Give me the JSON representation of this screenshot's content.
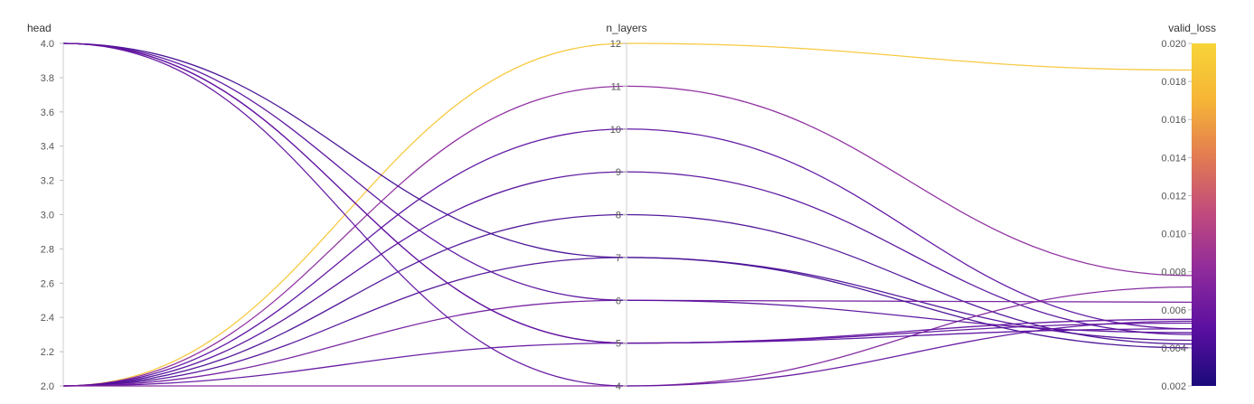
{
  "chart_data": {
    "type": "parallel_coordinates",
    "axes": [
      {
        "key": "head",
        "label": "head",
        "range": [
          2.0,
          4.0
        ],
        "ticks": [
          "2.0",
          "2.2",
          "2.4",
          "2.6",
          "2.8",
          "3.0",
          "3.2",
          "3.4",
          "3.6",
          "3.8",
          "4.0"
        ]
      },
      {
        "key": "n_layers",
        "label": "n_layers",
        "range": [
          4,
          12
        ],
        "ticks": [
          "4",
          "5",
          "6",
          "7",
          "8",
          "9",
          "10",
          "11",
          "12"
        ]
      },
      {
        "key": "valid_loss",
        "label": "valid_loss",
        "range": [
          0.002,
          0.02
        ],
        "ticks": [
          "0.002",
          "0.004",
          "0.006",
          "0.008",
          "0.010",
          "0.012",
          "0.014",
          "0.016",
          "0.018",
          "0.020"
        ]
      }
    ],
    "color_scale": {
      "metric": "valid_loss",
      "range": [
        0.002,
        0.02
      ],
      "stops": [
        "#1a0a7a",
        "#5b0fa0",
        "#8e2a9c",
        "#c0497e",
        "#e27a52",
        "#f6b536",
        "#f7d438"
      ]
    },
    "runs": [
      {
        "head": 2,
        "n_layers": 12,
        "valid_loss": 0.0186
      },
      {
        "head": 2,
        "n_layers": 11,
        "valid_loss": 0.0078
      },
      {
        "head": 2,
        "n_layers": 10,
        "valid_loss": 0.005
      },
      {
        "head": 2,
        "n_layers": 9,
        "valid_loss": 0.0047
      },
      {
        "head": 2,
        "n_layers": 8,
        "valid_loss": 0.0042
      },
      {
        "head": 2,
        "n_layers": 7,
        "valid_loss": 0.0044
      },
      {
        "head": 2,
        "n_layers": 6,
        "valid_loss": 0.0064
      },
      {
        "head": 2,
        "n_layers": 5,
        "valid_loss": 0.0053
      },
      {
        "head": 2,
        "n_layers": 4,
        "valid_loss": 0.0072
      },
      {
        "head": 4,
        "n_layers": 7,
        "valid_loss": 0.004
      },
      {
        "head": 4,
        "n_layers": 6,
        "valid_loss": 0.0048
      },
      {
        "head": 4,
        "n_layers": 5,
        "valid_loss": 0.005
      },
      {
        "head": 4,
        "n_layers": 5,
        "valid_loss": 0.0055
      },
      {
        "head": 4,
        "n_layers": 4,
        "valid_loss": 0.0054
      }
    ]
  }
}
